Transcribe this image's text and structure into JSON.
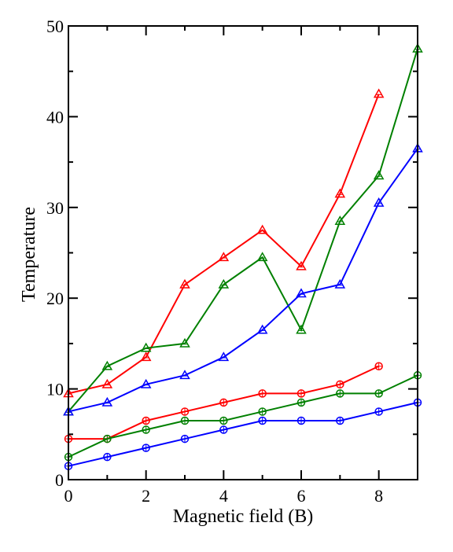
{
  "chart_data": {
    "type": "line",
    "title": "",
    "xlabel": "Magnetic field (B)",
    "ylabel": "Temperature",
    "xlim": [
      0,
      9
    ],
    "ylim": [
      0,
      50
    ],
    "xticks": [
      0,
      2,
      4,
      6,
      8
    ],
    "yticks": [
      0,
      10,
      20,
      30,
      40,
      50
    ],
    "grid": false,
    "legend": "none",
    "series": [
      {
        "marker": "triangle",
        "color": "#ff0000",
        "x": [
          0,
          1,
          2,
          3,
          4,
          5,
          6,
          7,
          8
        ],
        "y": [
          9.5,
          10.5,
          13.5,
          21.5,
          24.5,
          27.5,
          23.5,
          31.5,
          42.5
        ]
      },
      {
        "marker": "triangle",
        "color": "#008000",
        "x": [
          0,
          1,
          2,
          3,
          4,
          5,
          6,
          7,
          8,
          9
        ],
        "y": [
          7.5,
          12.5,
          14.5,
          15.0,
          21.5,
          24.5,
          16.5,
          28.5,
          33.5,
          47.5
        ]
      },
      {
        "marker": "triangle",
        "color": "#0000ff",
        "x": [
          0,
          1,
          2,
          3,
          4,
          5,
          6,
          7,
          8,
          9
        ],
        "y": [
          7.5,
          8.5,
          10.5,
          11.5,
          13.5,
          16.5,
          20.5,
          21.5,
          30.5,
          36.5
        ]
      },
      {
        "marker": "circle",
        "color": "#ff0000",
        "x": [
          0,
          1,
          2,
          3,
          4,
          5,
          6,
          7,
          8
        ],
        "y": [
          4.5,
          4.5,
          6.5,
          7.5,
          8.5,
          9.5,
          9.5,
          10.5,
          12.5
        ]
      },
      {
        "marker": "circle",
        "color": "#008000",
        "x": [
          0,
          1,
          2,
          3,
          4,
          5,
          6,
          7,
          8,
          9
        ],
        "y": [
          2.5,
          4.5,
          5.5,
          6.5,
          6.5,
          7.5,
          8.5,
          9.5,
          9.5,
          11.5
        ]
      },
      {
        "marker": "circle",
        "color": "#0000ff",
        "x": [
          0,
          1,
          2,
          3,
          4,
          5,
          6,
          7,
          8,
          9
        ],
        "y": [
          1.5,
          2.5,
          3.5,
          4.5,
          5.5,
          6.5,
          6.5,
          6.5,
          7.5,
          8.5
        ]
      }
    ]
  }
}
